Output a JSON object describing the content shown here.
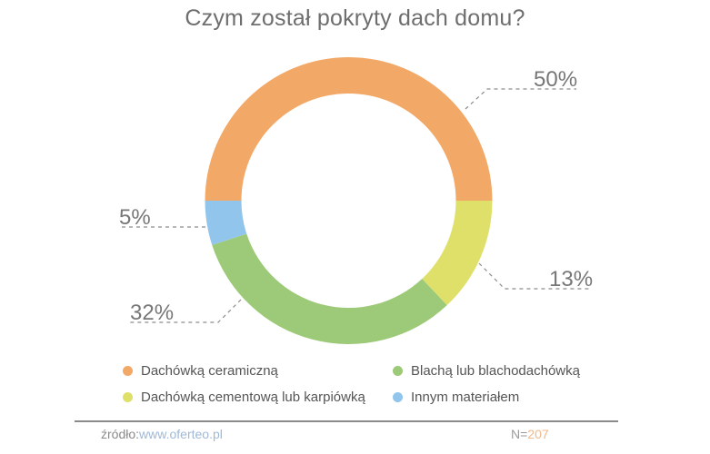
{
  "title": "Czym został pokryty dach domu?",
  "chart_data": {
    "type": "pie",
    "variant": "donut",
    "title": "Czym został pokryty dach domu?",
    "categories": [
      "Dachówką ceramiczną",
      "Dachówką cementową lub karpiówką",
      "Blachą lub blachodachówką",
      "Innym materiałem"
    ],
    "values": [
      50,
      13,
      32,
      5
    ],
    "unit": "%",
    "colors": [
      "#f2a968",
      "#dfe06a",
      "#9dca78",
      "#92c5ec"
    ],
    "data_labels": [
      "50%",
      "13%",
      "32%",
      "5%"
    ],
    "legend_position": "bottom",
    "start_angle_deg": 270,
    "direction": "clockwise"
  },
  "labels": {
    "ceramic": "50%",
    "cement": "13%",
    "metal": "32%",
    "other": "5%"
  },
  "legend": [
    {
      "label": "Dachówką ceramiczną",
      "color": "#f2a968"
    },
    {
      "label": "Blachą lub blachodachówką",
      "color": "#9dca78"
    },
    {
      "label": "Dachówką cementową lub karpiówką",
      "color": "#dfe06a"
    },
    {
      "label": "Innym materiałem",
      "color": "#92c5ec"
    }
  ],
  "footer": {
    "source_label": "źródło:",
    "source_link": "www.oferteo.pl",
    "n_label": "N=",
    "n_value": "207"
  }
}
